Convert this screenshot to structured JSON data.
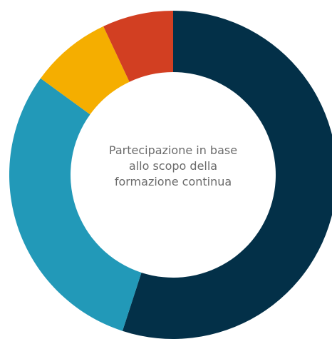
{
  "chart_data": {
    "type": "donut",
    "title": "Partecipazione in base allo scopo della formazione continua",
    "values": [
      55,
      30,
      8,
      7
    ],
    "colors": [
      "#033048",
      "#2299b8",
      "#f5ae00",
      "#d23f22"
    ]
  }
}
